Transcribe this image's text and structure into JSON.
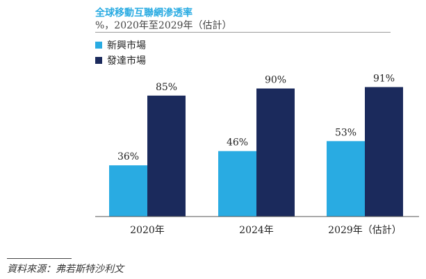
{
  "chart_data": {
    "type": "bar",
    "title": "全球移動互聯網滲透率",
    "subtitle": "%，2020年至2029年（估計）",
    "categories": [
      "2020年",
      "2024年",
      "2029年（估計）"
    ],
    "series": [
      {
        "name": "新興市場",
        "values": [
          36,
          46,
          53
        ],
        "labels": [
          "36%",
          "46%",
          "53%"
        ],
        "color": "#29abe2"
      },
      {
        "name": "發達市場",
        "values": [
          85,
          90,
          91
        ],
        "labels": [
          "85%",
          "90%",
          "91%"
        ],
        "color": "#1b2a5c"
      }
    ],
    "ylim": [
      0,
      100
    ],
    "xlabel": "",
    "ylabel": "",
    "grid": false,
    "legend": "top-left"
  },
  "source": "資料來源：弗若斯特沙利文"
}
